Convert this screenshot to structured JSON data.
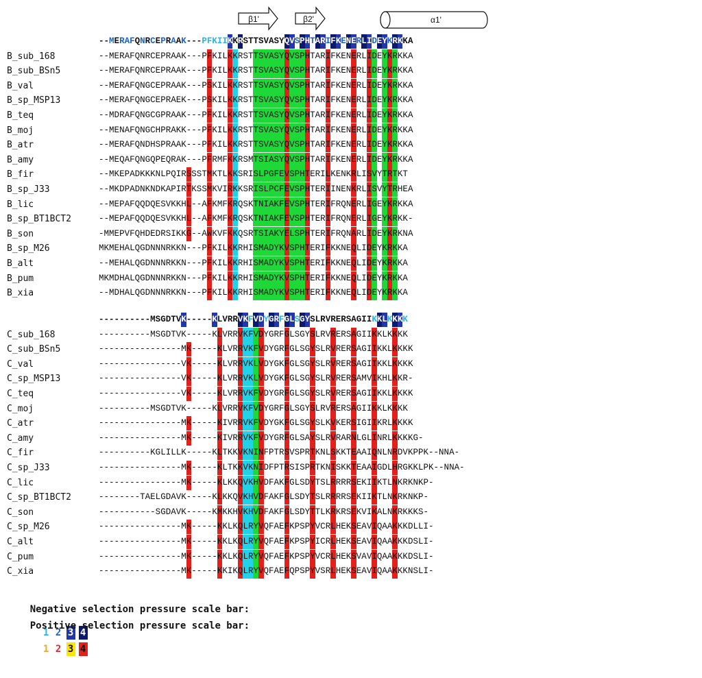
{
  "secondary_structure": {
    "beta1": "β1'",
    "beta2": "β2'",
    "alpha1": "α1'"
  },
  "colors": {
    "neg1": "#29b6e6",
    "neg2": "#1e63c8",
    "neg3": "#2437a8",
    "neg4": "#0b1a6e",
    "pos1": "#f5a623",
    "pos2": "#e8242a",
    "pos3": "#ffe600",
    "pos4": "#e2201c",
    "green": "#1ed838",
    "cyan": "#23d2e6"
  },
  "blockB": {
    "consensus": "--MERAFQNRCEPRAAK---PFKIIKKRSTTSVASYQVSPHTARIFKENERLIDEYKRKKA",
    "rows": [
      {
        "name": "B_sub_168",
        "seq": "--MERAFQNRCEPRAAK---PFKILKKRSTTSVASYQVSPHTARIFKENERLIDEYKRKKA"
      },
      {
        "name": "B_sub_BSn5",
        "seq": "--MERAFQNRCEPRAAK---PFKILKKRSTTSVASYQVSPHTARIFKENERLIDEYKRKKA"
      },
      {
        "name": "B_val",
        "seq": "--MERAFQNGCEPRAAK---PSKILKKRSTTSVASYQVSPHTARIFKENERLIDEYKRKKA"
      },
      {
        "name": "B_sp_MSP13",
        "seq": "--MERAFQNGCEPRAEK---PSKILKKRSTTSVASYQVSPHTARIFKENERLIDEYKRKKA"
      },
      {
        "name": "B_teq",
        "seq": "--MDRAFQNGCGPRAAK---PFKILKKRSTTSVASYQVSPHTARIFKENERLIDEYKRKKA"
      },
      {
        "name": "B_moj",
        "seq": "--MENAFQNGCHPRAKK---PFKILKKRSTTSVASYQVSPHTARIFKENERLIDEYKRKKA"
      },
      {
        "name": "B_atr",
        "seq": "--MERAFQNDHSPRAAK---PFKILKKRSTTSVASYQVSPHTARIFKENERLIDEYKRKKA"
      },
      {
        "name": "B_amy",
        "seq": "--MEQAFQNGQPEQRAK---PFRMFKKRSMTSIASYQVSPHTARIFKENERLIDEYKRKKA"
      },
      {
        "name": "B_fir",
        "seq": "--MKEPADKKKNLPQIRSSSTMKTLKKSRISLPGFEVSPHTERILKENKRLISVYTRTKT"
      },
      {
        "name": "B_sp_J33",
        "seq": "--MKDPADNKNDKAPIRTKSSMKVIRKKSRISLPCFEVSPHTERIINENKRLISVYTRHEA"
      },
      {
        "name": "B_lic",
        "seq": "--MEPAFQQDQESVKKHL--AFKMFKRQSKTNIAKFEVSPHTERIFRQNERLIGEYKRKKA"
      },
      {
        "name": "B_sp_BT1BCT2",
        "seq": "--MEPAFQQDQESVKKHL--AFKMFKRQSKTNIAKFEVSPHTERIFRQNERLIGEYKRKK-"
      },
      {
        "name": "B_son",
        "seq": "-MMEPVFQHDEDRSIKKG--AWKVFKKQSRTSIAKYELSPHTERIFRQNARLIDEYKRKNA"
      },
      {
        "name": "B_sp_M26",
        "seq": "MKMEHALQGDNNNRKKN---PFKILKKRHISMADYKVSPHTERIFKKNEQLIDEYKRKKA"
      },
      {
        "name": "B_alt",
        "seq": "--MEHALQGDNNNRKKN---PFKILKKRHISMADYKVSPHTERIFKKNEQLIDEYKRKKA"
      },
      {
        "name": "B_pum",
        "seq": "MKMDHALQGDNNNRKKN---PFKILKKRHISMADYKVSPHTERIFKKNEQLIDEYKRKKA"
      },
      {
        "name": "B_xia",
        "seq": "--MDHALQGDNNNRKKN---PFKILKKRHISMADYKVSPHTERIFKKNEQLIDEYKRKKA"
      }
    ]
  },
  "blockC": {
    "consensus": "----------MSGDTVK-----KLVRRVKFVDYGRFGLSGYSLRVRERSAGIIKKLKKKK",
    "rows": [
      {
        "name": "C_sub_168",
        "seq": "----------MSGDTVK-----KLVRRVKFVDYGRFGLSGYSLRVRERSAGIIKKLKKKK"
      },
      {
        "name": "C_sub_BSn5",
        "seq": "----------------MK-----KLVRRVKFVDYGRFGLSGYSLRVRERSAGIIKKLKKKK"
      },
      {
        "name": "C_val",
        "seq": "----------------VK-----KLVRRVKLVDYGKFGLSGYSLRVRERSAGIIKKLKKKK"
      },
      {
        "name": "C_sp_MSP13",
        "seq": "----------------VK-----KLVRRVKLVDYGKFGLSGYSLRVRERSAMVIKHLKKR-"
      },
      {
        "name": "C_teq",
        "seq": "----------------VK-----KLVRRVKFVDYGRFGLSGYSLRVRERSAGIIKKLKKKK"
      },
      {
        "name": "C_moj",
        "seq": "----------MSGDTVK-----KLVRRVKFVDYGRFGLSGYSLRVRERSAGIIKKLKKKK"
      },
      {
        "name": "C_atr",
        "seq": "----------------MK-----KIVRRVKFVDYGKFGLSGYSLKVKERSIGIIKRLKKKK"
      },
      {
        "name": "C_amy",
        "seq": "----------------MK-----KIVRRVKFVDYGRFGLSAYSLRVRARNLGLINRLKKKKG-"
      },
      {
        "name": "C_fir",
        "seq": "----------KGLILLK-----KLTKKVKNINFPTRSVSPRTKNLSKKTEAAIQNLNRDVKPPK--NNA-"
      },
      {
        "name": "C_sp_J33",
        "seq": "----------------MK-----KLTKKVKNIDFPTRSISPRTKNISKKTEAAIGDLHRGKKLPK--NNA-"
      },
      {
        "name": "C_lic",
        "seq": "----------------MK-----KLKKQVKHVDFAKFGLSDYTSLRRRRSEKIIKTLNKRKNKP-"
      },
      {
        "name": "C_sp_BT1BCT2",
        "seq": "--------TAELGDAVK-----KLKKQVKHVDFAKFGLSDYTSLRRRRSEKIIKTLNKRKNKP-"
      },
      {
        "name": "C_son",
        "seq": "-----------SGDAVK-----KMKKHVKHVDFAKFGLSDYTTLKRKRSEKVIKALNKRKKKS-"
      },
      {
        "name": "C_sp_M26",
        "seq": "----------------MK-----KKLKQLRYVQFAEFKPSPYVCRLHEKSEAVIQAAKKKDLLI-"
      },
      {
        "name": "C_alt",
        "seq": "----------------MK-----KKLKQLRYVQFAEFKPSPYICRLHEKSEAVIQAAKKKDSLI-"
      },
      {
        "name": "C_pum",
        "seq": "----------------MK-----KKLKQLRYVQFAEFKPSPYVCRLHEKSVAVIQAAKKKDSLI-"
      },
      {
        "name": "C_xia",
        "seq": "----------------MK-----KKIKQLRYVQFAEFQPSPYVSRLHEKSEAVIQAAKKKNSLI-"
      }
    ]
  },
  "legend": {
    "negative_label": "Negative selection pressure scale bar:",
    "positive_label": "Positive selection pressure scale bar:",
    "levels": [
      "1",
      "2",
      "3",
      "4"
    ]
  }
}
